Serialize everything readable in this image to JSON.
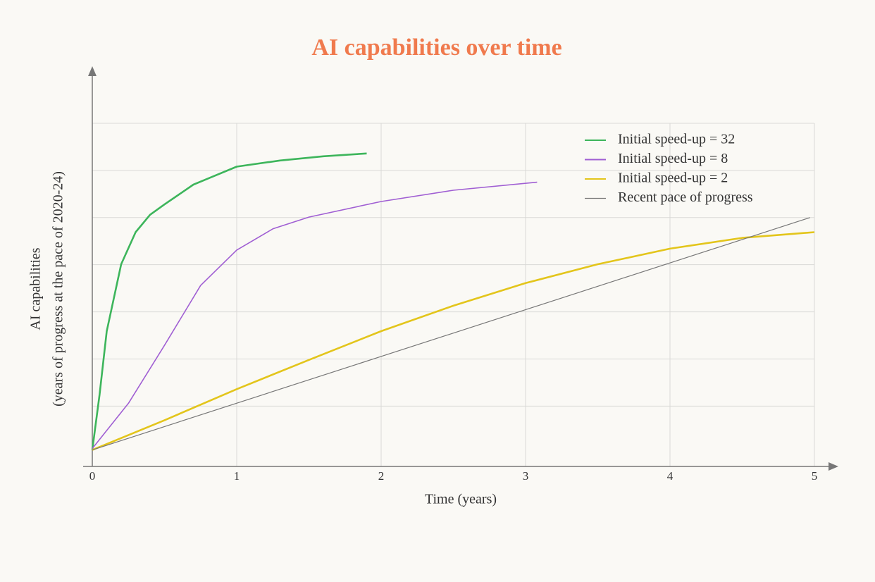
{
  "chart_data": {
    "type": "line",
    "title": "AI capabilities over time",
    "x_label": "Time (years)",
    "y_label": [
      "AI capabilities",
      "(years of progress at the pace of 2020-24)"
    ],
    "xlim": [
      0,
      5
    ],
    "xticks": [
      0,
      1,
      2,
      3,
      4,
      5
    ],
    "ylim": [
      -0.28,
      7
    ],
    "yticks": [
      1,
      2,
      3,
      4,
      5,
      6,
      7
    ],
    "grid": true,
    "legend": "top-right",
    "series": [
      {
        "name": "Initial speed-up = 32",
        "color": "#3db55b",
        "x": [
          0,
          0.05,
          0.1,
          0.2,
          0.3,
          0.4,
          0.5,
          0.7,
          1.0,
          1.3,
          1.6,
          1.9
        ],
        "values": [
          0.07,
          1.24,
          2.59,
          4.01,
          4.69,
          5.06,
          5.28,
          5.7,
          6.08,
          6.21,
          6.3,
          6.36
        ]
      },
      {
        "name": "Initial speed-up = 8",
        "color": "#a05fd3",
        "x": [
          0,
          0.25,
          0.5,
          0.75,
          1.0,
          1.25,
          1.5,
          2.0,
          2.5,
          3.08
        ],
        "values": [
          0.1,
          1.06,
          2.29,
          3.56,
          4.31,
          4.76,
          5.01,
          5.34,
          5.58,
          5.75
        ]
      },
      {
        "name": "Initial speed-up = 2",
        "color": "#e3c51b",
        "x": [
          0,
          0.5,
          1,
          1.5,
          2,
          2.5,
          3,
          3.5,
          4,
          4.5,
          5
        ],
        "values": [
          0.07,
          0.7,
          1.36,
          1.98,
          2.59,
          3.13,
          3.61,
          4.01,
          4.34,
          4.57,
          4.69
        ]
      },
      {
        "name": "Recent pace of progress",
        "color": "#777777",
        "x": [
          0,
          4.97
        ],
        "values": [
          0.07,
          5.0
        ]
      }
    ]
  }
}
